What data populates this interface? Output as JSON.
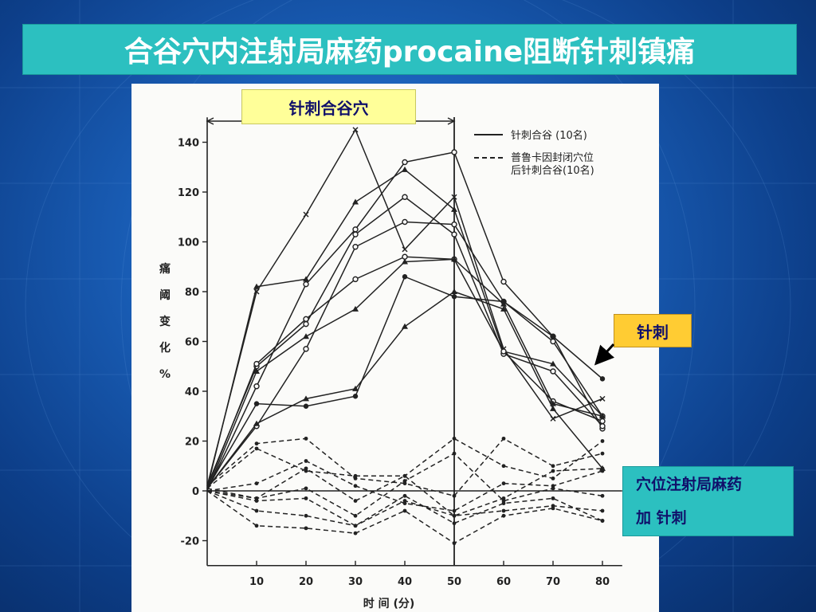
{
  "slide": {
    "title": "合谷穴内注射局麻药procaine阻断针刺镇痛"
  },
  "callouts": {
    "acupuncture_period": "针刺合谷穴",
    "acupuncture": "针刺",
    "injection_line1": "穴位注射局麻药",
    "injection_line2": "加 针刺"
  },
  "chart_data": {
    "type": "line",
    "xlabel": "时 间 (分)",
    "ylabel": "痛阈变化%",
    "x": [
      0,
      10,
      20,
      30,
      40,
      50,
      60,
      70,
      80
    ],
    "xticks": [
      "10",
      "20",
      "30",
      "40",
      "50",
      "60",
      "70",
      "80"
    ],
    "yticks": [
      "140",
      "120",
      "100",
      "80",
      "60",
      "40",
      "20",
      "0",
      "-20"
    ],
    "xlim": [
      0,
      84
    ],
    "ylim": [
      -30,
      150
    ],
    "stimulation_end_x": 50,
    "legend": {
      "solid": "针刺合谷 (10名)",
      "dashed_line1": "普鲁卡因封闭穴位",
      "dashed_line2": "后针刺合谷(10名)"
    },
    "solid_series": [
      {
        "marker": "x",
        "values": [
          2,
          80,
          111,
          145,
          97,
          118,
          57,
          29,
          37
        ]
      },
      {
        "marker": "triangle",
        "values": [
          1,
          82,
          85,
          116,
          129,
          113,
          56,
          51,
          30
        ]
      },
      {
        "marker": "circle",
        "values": [
          0,
          42,
          83,
          105,
          132,
          136,
          84,
          62,
          25
        ]
      },
      {
        "marker": "circle",
        "values": [
          2,
          50,
          67,
          103,
          118,
          103,
          55,
          48,
          26
        ]
      },
      {
        "marker": "circle",
        "values": [
          1,
          26,
          57,
          98,
          108,
          107,
          76,
          60,
          30
        ]
      },
      {
        "marker": "circle",
        "values": [
          1,
          51,
          69,
          85,
          94,
          93,
          56,
          36,
          28
        ]
      },
      {
        "marker": "triangle",
        "values": [
          0,
          48,
          62,
          73,
          92,
          93,
          75,
          35,
          30
        ]
      },
      {
        "marker": "dot",
        "values": [
          1,
          35,
          34,
          38,
          86,
          78,
          76,
          62,
          45
        ]
      },
      {
        "marker": "triangle",
        "values": [
          1,
          27,
          37,
          41,
          66,
          80,
          73,
          33,
          9
        ]
      }
    ],
    "dashed_series": [
      {
        "values": [
          2,
          19,
          21,
          5,
          3,
          -2,
          21,
          10,
          15
        ]
      },
      {
        "values": [
          1,
          17,
          8,
          6,
          6,
          21,
          10,
          5,
          20
        ]
      },
      {
        "values": [
          0,
          3,
          12,
          2,
          -5,
          -8,
          3,
          2,
          8
        ]
      },
      {
        "values": [
          1,
          -3,
          9,
          -4,
          6,
          -10,
          -3,
          8,
          9
        ]
      },
      {
        "values": [
          0,
          -3,
          1,
          -10,
          4,
          15,
          -4,
          1,
          -2
        ]
      },
      {
        "values": [
          0,
          -4,
          -3,
          -14,
          -2,
          -13,
          -5,
          -3,
          -12
        ]
      },
      {
        "values": [
          0,
          -8,
          -10,
          -14,
          -4,
          -10,
          -8,
          -6,
          -8
        ]
      },
      {
        "values": [
          0,
          -14,
          -15,
          -17,
          -8,
          -21,
          -10,
          -7,
          -12
        ]
      }
    ]
  }
}
